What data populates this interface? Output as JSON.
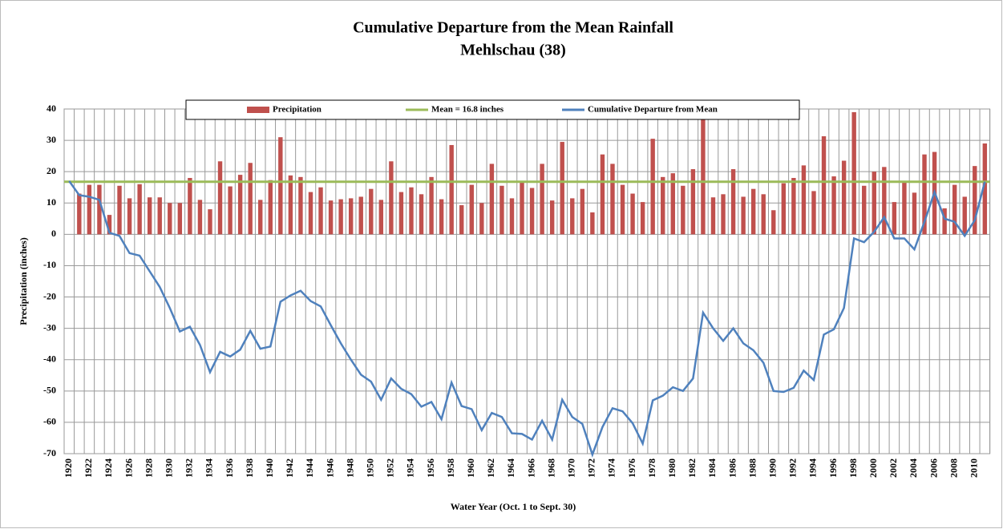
{
  "chart_data": {
    "type": "bar_line",
    "title": "Cumulative Departure from the Mean Rainfall",
    "subtitle": "Mehlschau  (38)",
    "y_label": "Precipitation  (inches)",
    "x_label": "Water Year (Oct. 1 to Sept. 30)",
    "categories": [
      "1920",
      null,
      "1922",
      null,
      "1924",
      null,
      "1926",
      null,
      "1928",
      null,
      "1930",
      null,
      "1932",
      null,
      "1934",
      null,
      "1936",
      null,
      "1938",
      null,
      "1940",
      null,
      "1942",
      null,
      "1944",
      null,
      "1946",
      null,
      "1948",
      null,
      "1950",
      null,
      "1952",
      null,
      "1954",
      null,
      "1956",
      null,
      "1958",
      null,
      "1960",
      null,
      "1962",
      null,
      "1964",
      null,
      "1966",
      null,
      "1968",
      null,
      "1970",
      null,
      "1972",
      null,
      "1974",
      null,
      "1976",
      null,
      "1978",
      null,
      "1980",
      null,
      "1982",
      null,
      "1984",
      null,
      "1986",
      null,
      "1988",
      null,
      "1990",
      null,
      "1992",
      null,
      "1994",
      null,
      "1996",
      null,
      "1998",
      null,
      "2000",
      null,
      "2002",
      null,
      "2004",
      null,
      "2006",
      null,
      "2008",
      null,
      "2010",
      null
    ],
    "series": [
      {
        "name": "Precipitation",
        "type": "bar",
        "color": "#c0504d",
        "values": [
          null,
          13,
          15.8,
          15.8,
          6.2,
          15.5,
          11.5,
          16,
          11.8,
          11.8,
          10,
          10,
          18,
          11,
          8,
          23.3,
          15.3,
          19,
          22.8,
          11,
          17.3,
          31,
          18.8,
          18.3,
          13.5,
          15,
          10.8,
          11.2,
          11.5,
          12,
          14.5,
          11,
          23.3,
          13.5,
          15,
          12.8,
          18.3,
          11.2,
          28.5,
          9.3,
          15.8,
          10,
          22.5,
          15.5,
          11.5,
          16.5,
          14.8,
          22.5,
          10.8,
          29.5,
          11.5,
          14.5,
          7,
          25.5,
          22.5,
          15.8,
          13,
          10.3,
          30.5,
          18.3,
          19.5,
          15.5,
          20.8,
          37.8,
          11.8,
          12.8,
          20.8,
          12,
          14.5,
          12.8,
          7.7,
          16.3,
          18,
          22,
          13.8,
          31.3,
          18.5,
          23.5,
          39,
          15.5,
          20,
          21.5,
          10.3,
          16.5,
          13.3,
          25.5,
          26.3,
          8.3,
          15.8,
          12,
          21.8,
          29
        ]
      },
      {
        "name": "Cumulative Departure from Mean",
        "type": "line",
        "color": "#4f81bd",
        "values": [
          17,
          12.5,
          12,
          11,
          0.5,
          -0.5,
          -6,
          -6.8,
          -11.8,
          -16.8,
          -23.5,
          -31,
          -29.5,
          -35.3,
          -44,
          -37.5,
          -39,
          -36.8,
          -30.8,
          -36.5,
          -35.8,
          -21.5,
          -19.5,
          -18,
          -21.3,
          -23,
          -29,
          -34.8,
          -40,
          -44.8,
          -47,
          -52.8,
          -46,
          -49.3,
          -51,
          -55,
          -53.5,
          -59,
          -47.3,
          -54.8,
          -55.8,
          -62.5,
          -57,
          -58.3,
          -63.5,
          -63.7,
          -65.5,
          -59.5,
          -65.5,
          -52.8,
          -58.3,
          -60.5,
          -70.3,
          -61.5,
          -55.5,
          -56.5,
          -60.3,
          -66.8,
          -53,
          -51.5,
          -48.8,
          -50,
          -46,
          -25,
          -30,
          -34,
          -30,
          -34.8,
          -37,
          -41,
          -50,
          -50.3,
          -49,
          -43.5,
          -46.5,
          -32,
          -30.3,
          -23.5,
          -1.3,
          -2.5,
          0.8,
          5.5,
          -1.3,
          -1.3,
          -4.8,
          4,
          13.5,
          5,
          4,
          -0.5,
          4.5,
          16.8
        ]
      }
    ],
    "reference_line": {
      "name": "Mean = 16.8 inches",
      "value": 16.8,
      "color": "#9bbb59"
    },
    "ylim": [
      -70,
      40
    ],
    "yticks": [
      -70,
      -60,
      -50,
      -40,
      -30,
      -20,
      -10,
      0,
      10,
      20,
      30,
      40
    ],
    "grid": true
  }
}
